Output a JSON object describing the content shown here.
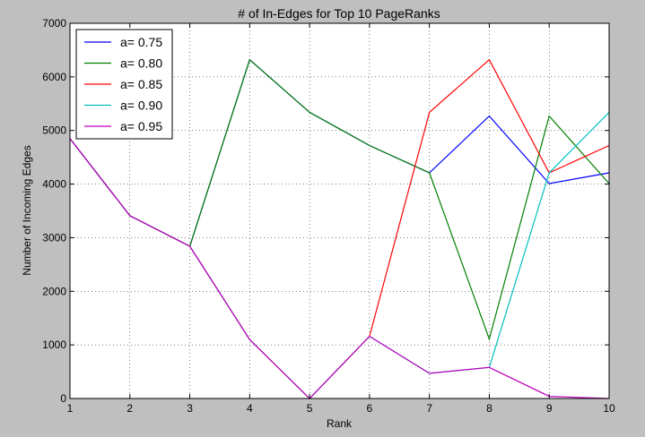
{
  "chart_data": {
    "type": "line",
    "title": "# of In-Edges for Top 10 PageRanks",
    "xlabel": "Rank",
    "ylabel": "Number of Incoming Edges",
    "x": [
      1,
      2,
      3,
      4,
      5,
      6,
      7,
      8,
      9,
      10
    ],
    "xlim": [
      1,
      10
    ],
    "ylim": [
      0,
      7000
    ],
    "xticks": [
      1,
      2,
      3,
      4,
      5,
      6,
      7,
      8,
      9,
      10
    ],
    "yticks": [
      0,
      1000,
      2000,
      3000,
      4000,
      5000,
      6000,
      7000
    ],
    "grid": true,
    "legend_position": "top-left",
    "series": [
      {
        "name": "a= 0.75",
        "color": "#0000ff",
        "values": [
          4850,
          3410,
          2840,
          6320,
          5340,
          4720,
          4210,
          5270,
          4010,
          4210
        ]
      },
      {
        "name": "a= 0.80",
        "color": "#008000",
        "values": [
          4850,
          3410,
          2840,
          6320,
          5340,
          4720,
          4210,
          1110,
          5270,
          4010
        ]
      },
      {
        "name": "a= 0.85",
        "color": "#ff0000",
        "values": [
          4850,
          3410,
          2840,
          1100,
          0,
          1160,
          5340,
          6320,
          4210,
          4720
        ]
      },
      {
        "name": "a= 0.90",
        "color": "#00bfbf",
        "values": [
          4850,
          3410,
          2840,
          1100,
          0,
          1160,
          470,
          580,
          4210,
          5340
        ]
      },
      {
        "name": "a= 0.95",
        "color": "#bf00bf",
        "values": [
          4850,
          3410,
          2840,
          1100,
          0,
          1160,
          470,
          580,
          40,
          0
        ]
      }
    ]
  }
}
